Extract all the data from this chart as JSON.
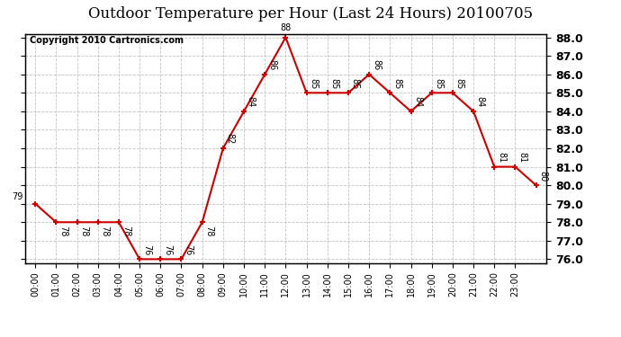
{
  "title": "Outdoor Temperature per Hour (Last 24 Hours) 20100705",
  "copyright_text": "Copyright 2010 Cartronics.com",
  "hours": [
    "00:00",
    "01:00",
    "02:00",
    "03:00",
    "04:00",
    "05:00",
    "06:00",
    "07:00",
    "08:00",
    "09:00",
    "10:00",
    "11:00",
    "12:00",
    "13:00",
    "14:00",
    "15:00",
    "16:00",
    "17:00",
    "18:00",
    "19:00",
    "20:00",
    "21:00",
    "22:00",
    "23:00"
  ],
  "y_vals": [
    79,
    78,
    78,
    78,
    78,
    76,
    76,
    76,
    78,
    82,
    84,
    86,
    88,
    85,
    85,
    85,
    86,
    85,
    84,
    85,
    85,
    84,
    81,
    81,
    80
  ],
  "ylim_min": 75.8,
  "ylim_max": 88.2,
  "y_ticks": [
    76.0,
    77.0,
    78.0,
    79.0,
    80.0,
    81.0,
    82.0,
    83.0,
    84.0,
    85.0,
    86.0,
    87.0,
    88.0
  ],
  "line_color": "#cc0000",
  "bg_color": "#ffffff",
  "grid_color": "#bbbbbb",
  "title_fontsize": 12,
  "copyright_fontsize": 7,
  "label_fontsize": 7,
  "tick_fontsize": 7,
  "ytick_fontsize": 8
}
